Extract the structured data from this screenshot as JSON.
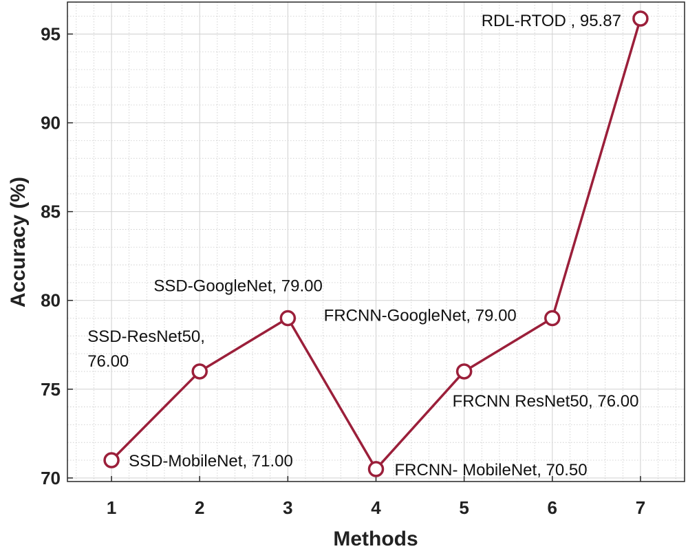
{
  "chart_data": {
    "type": "line",
    "title": "",
    "xlabel": "Methods",
    "ylabel": "Accuracy (%)",
    "x": [
      1,
      2,
      3,
      4,
      5,
      6,
      7
    ],
    "series": [
      {
        "values": [
          71.0,
          76.0,
          79.0,
          70.5,
          76.0,
          79.0,
          95.87
        ]
      }
    ],
    "xlim": [
      0.5,
      7.5
    ],
    "ylim": [
      69.8,
      96.8
    ],
    "x_ticks": [
      "1",
      "2",
      "3",
      "4",
      "5",
      "6",
      "7"
    ],
    "y_ticks": [
      "70",
      "75",
      "80",
      "85",
      "90",
      "95"
    ],
    "grid": true,
    "minor_grid": true,
    "line_color": "#9b1f3a",
    "marker": "circle",
    "annotations": [
      {
        "lines": [
          "SSD-MobileNet, 71.00"
        ]
      },
      {
        "lines": [
          "SSD-ResNet50,",
          " 76.00"
        ]
      },
      {
        "lines": [
          "SSD-GoogleNet, 79.00"
        ]
      },
      {
        "lines": [
          "FRCNN- MobileNet, 70.50"
        ]
      },
      {
        "lines": [
          "FRCNN ResNet50, 76.00"
        ]
      },
      {
        "lines": [
          "FRCNN-GoogleNet, 79.00"
        ]
      },
      {
        "lines": [
          "RDL-RTOD , 95.87"
        ]
      }
    ]
  }
}
